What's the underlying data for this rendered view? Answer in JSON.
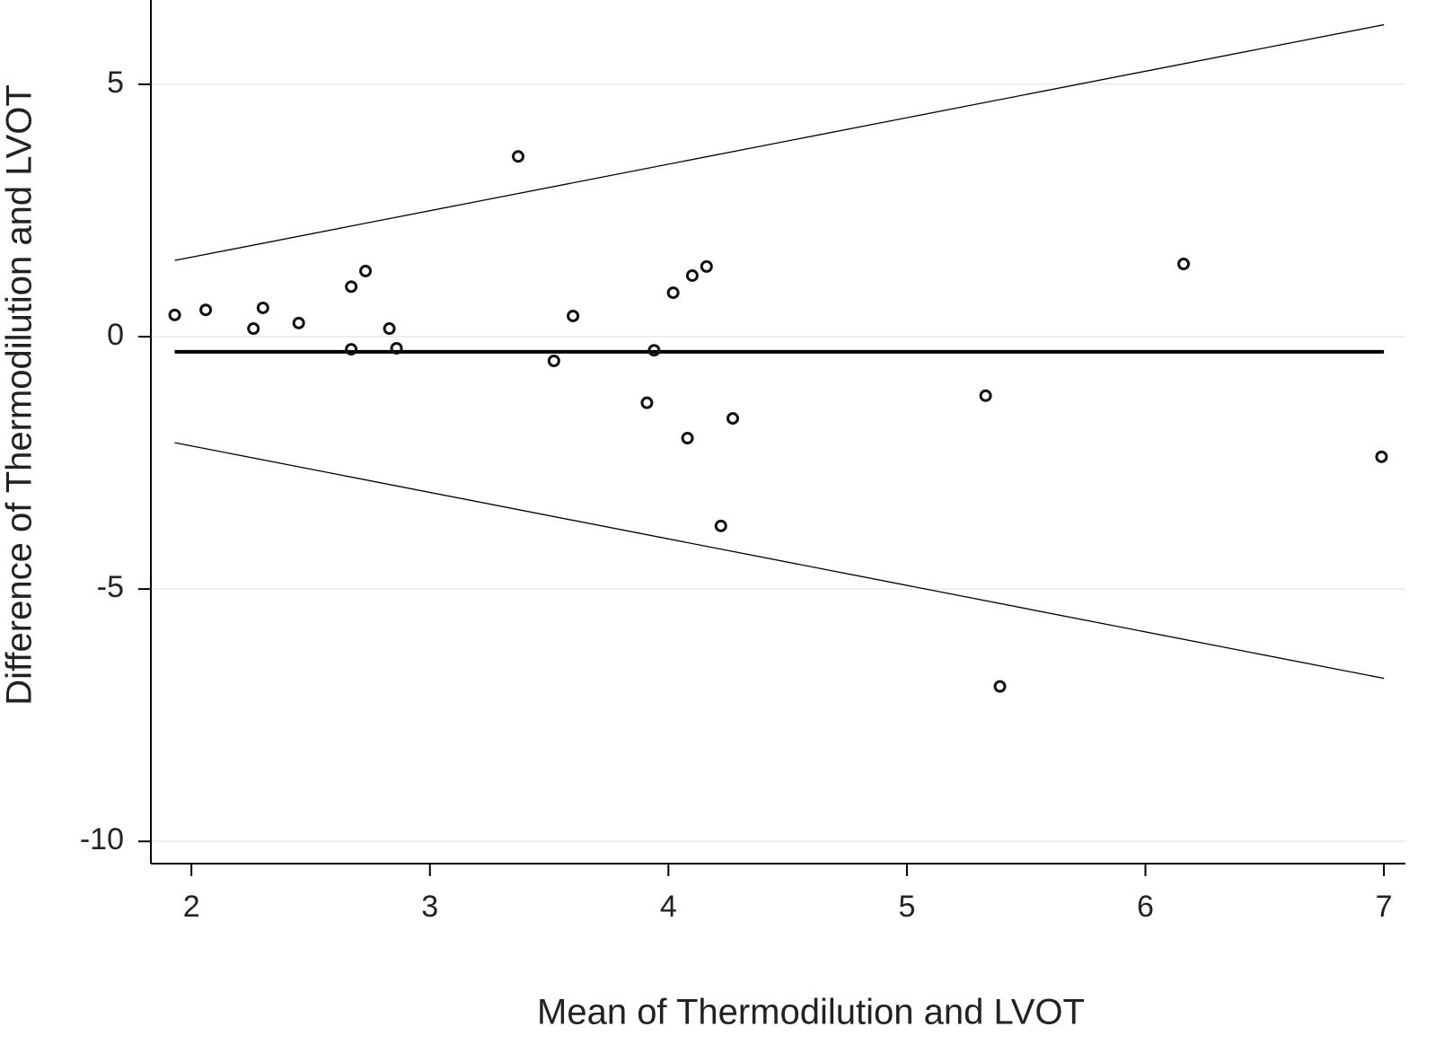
{
  "chart_data": {
    "type": "scatter",
    "x_label": "Mean of Thermodilution and LVOT",
    "y_label": "Difference of Thermodilution and LVOT",
    "x": [
      1.93,
      2.06,
      2.26,
      2.3,
      2.45,
      2.67,
      2.67,
      2.73,
      2.83,
      2.86,
      3.37,
      3.52,
      3.6,
      3.91,
      3.94,
      4.02,
      4.08,
      4.1,
      4.16,
      4.22,
      4.27,
      5.33,
      5.39,
      6.16,
      6.99
    ],
    "values": [
      0.43,
      0.53,
      0.16,
      0.57,
      0.27,
      0.99,
      -0.25,
      1.3,
      0.16,
      -0.23,
      3.57,
      -0.48,
      0.41,
      -1.31,
      -0.27,
      0.87,
      -2.01,
      1.21,
      1.39,
      -3.75,
      -1.62,
      -1.17,
      -6.93,
      1.44,
      -2.38
    ],
    "color": "#111111",
    "lines": [
      {
        "x": [
          1.93,
          7.0
        ],
        "values": [
          -0.3,
          -0.3
        ],
        "color": "#000000",
        "width": 4
      },
      {
        "x": [
          1.93,
          7.0
        ],
        "values": [
          1.51,
          6.18
        ],
        "color": "#000000",
        "width": 1.3
      },
      {
        "x": [
          1.93,
          7.0
        ],
        "values": [
          -2.1,
          -6.77
        ],
        "color": "#000000",
        "width": 1.3
      }
    ],
    "xlim": [
      1.83,
      7.09
    ],
    "ylim": [
      -10.44,
      6.67
    ],
    "xticks": [
      2,
      3,
      4,
      5,
      6,
      7
    ],
    "yticks": [
      5,
      0,
      -5,
      -10
    ],
    "grid": true
  }
}
